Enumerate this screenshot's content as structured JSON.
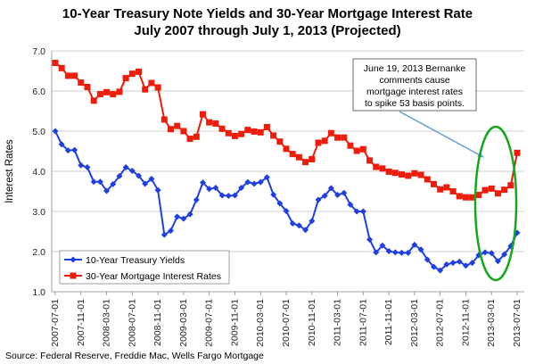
{
  "chart_data": {
    "type": "line",
    "title_line1": "10-Year Treasury Note Yields and 30-Year Mortgage Interest Rate",
    "title_line2": "July 2007 through July 1, 2013 (Projected)",
    "ylabel": "Interest Rates",
    "ylim": [
      1.0,
      7.0
    ],
    "yticks": [
      "1.0",
      "2.0",
      "3.0",
      "4.0",
      "5.0",
      "6.0",
      "7.0"
    ],
    "grid": "horizontal",
    "x_tick_labels": [
      "2007-07-01",
      "2007-11-01",
      "2008-03-01",
      "2008-07-01",
      "2008-11-01",
      "2009-03-01",
      "2009-07-01",
      "2009-11-01",
      "2010-03-01",
      "2010-07-01",
      "2010-11-01",
      "2011-03-01",
      "2011-07-01",
      "2011-11-01",
      "2012-03-01",
      "2012-07-01",
      "2012-11-01",
      "2013-03-01",
      "2013-07-01"
    ],
    "x": [
      "2007-07",
      "2007-08",
      "2007-09",
      "2007-10",
      "2007-11",
      "2007-12",
      "2008-01",
      "2008-02",
      "2008-03",
      "2008-04",
      "2008-05",
      "2008-06",
      "2008-07",
      "2008-08",
      "2008-09",
      "2008-10",
      "2008-11",
      "2008-12",
      "2009-01",
      "2009-02",
      "2009-03",
      "2009-04",
      "2009-05",
      "2009-06",
      "2009-07",
      "2009-08",
      "2009-09",
      "2009-10",
      "2009-11",
      "2009-12",
      "2010-01",
      "2010-02",
      "2010-03",
      "2010-04",
      "2010-05",
      "2010-06",
      "2010-07",
      "2010-08",
      "2010-09",
      "2010-10",
      "2010-11",
      "2010-12",
      "2011-01",
      "2011-02",
      "2011-03",
      "2011-04",
      "2011-05",
      "2011-06",
      "2011-07",
      "2011-08",
      "2011-09",
      "2011-10",
      "2011-11",
      "2011-12",
      "2012-01",
      "2012-02",
      "2012-03",
      "2012-04",
      "2012-05",
      "2012-06",
      "2012-07",
      "2012-08",
      "2012-09",
      "2012-10",
      "2012-11",
      "2012-12",
      "2013-01",
      "2013-02",
      "2013-03",
      "2013-04",
      "2013-05",
      "2013-06",
      "2013-07"
    ],
    "series": [
      {
        "name": "10-Year Treasury Yields",
        "color": "#1f3fe0",
        "marker": "diamond",
        "values": [
          5.0,
          4.67,
          4.52,
          4.53,
          4.15,
          4.1,
          3.74,
          3.74,
          3.51,
          3.68,
          3.88,
          4.1,
          4.01,
          3.89,
          3.69,
          3.81,
          3.53,
          2.42,
          2.52,
          2.87,
          2.82,
          2.93,
          3.29,
          3.72,
          3.56,
          3.59,
          3.4,
          3.39,
          3.4,
          3.59,
          3.73,
          3.69,
          3.73,
          3.85,
          3.42,
          3.2,
          3.01,
          2.7,
          2.65,
          2.54,
          2.76,
          3.29,
          3.39,
          3.58,
          3.41,
          3.46,
          3.17,
          3.0,
          3.0,
          2.3,
          1.98,
          2.15,
          2.01,
          1.98,
          1.97,
          1.97,
          2.17,
          2.05,
          1.8,
          1.62,
          1.53,
          1.68,
          1.72,
          1.75,
          1.65,
          1.72,
          1.91,
          1.98,
          1.96,
          1.76,
          1.93,
          2.14,
          2.47
        ]
      },
      {
        "name": "30-Year Mortgage Interest Rates",
        "color": "#ee1c0a",
        "marker": "square",
        "values": [
          6.7,
          6.57,
          6.38,
          6.38,
          6.21,
          6.1,
          5.76,
          5.92,
          5.97,
          5.92,
          5.98,
          6.32,
          6.43,
          6.48,
          6.04,
          6.2,
          6.09,
          5.29,
          5.05,
          5.13,
          5.0,
          4.81,
          4.86,
          5.42,
          5.22,
          5.19,
          5.06,
          4.95,
          4.88,
          4.93,
          5.03,
          4.99,
          4.97,
          5.1,
          4.89,
          4.74,
          4.56,
          4.43,
          4.35,
          4.23,
          4.3,
          4.71,
          4.76,
          4.95,
          4.84,
          4.84,
          4.64,
          4.51,
          4.55,
          4.27,
          4.11,
          4.07,
          3.99,
          3.96,
          3.92,
          3.89,
          3.95,
          3.91,
          3.8,
          3.68,
          3.55,
          3.6,
          3.5,
          3.38,
          3.35,
          3.35,
          3.41,
          3.53,
          3.57,
          3.45,
          3.54,
          3.65,
          4.46
        ]
      }
    ],
    "legend": {
      "placement": "bottom-left",
      "entries": [
        "10-Year Treasury Yields",
        "30-Year Mortgage Interest Rates"
      ]
    },
    "annotation": {
      "lines": [
        "June 19, 2013 Bernanke",
        "comments cause",
        "mortgage interest rates",
        "to spike 53 basis points."
      ],
      "arrow_color": "#6a9fd4",
      "highlight_color": "#15a81a"
    },
    "source": "Source: Federal Reserve, Freddie Mac, Wells Fargo Mortgage"
  }
}
